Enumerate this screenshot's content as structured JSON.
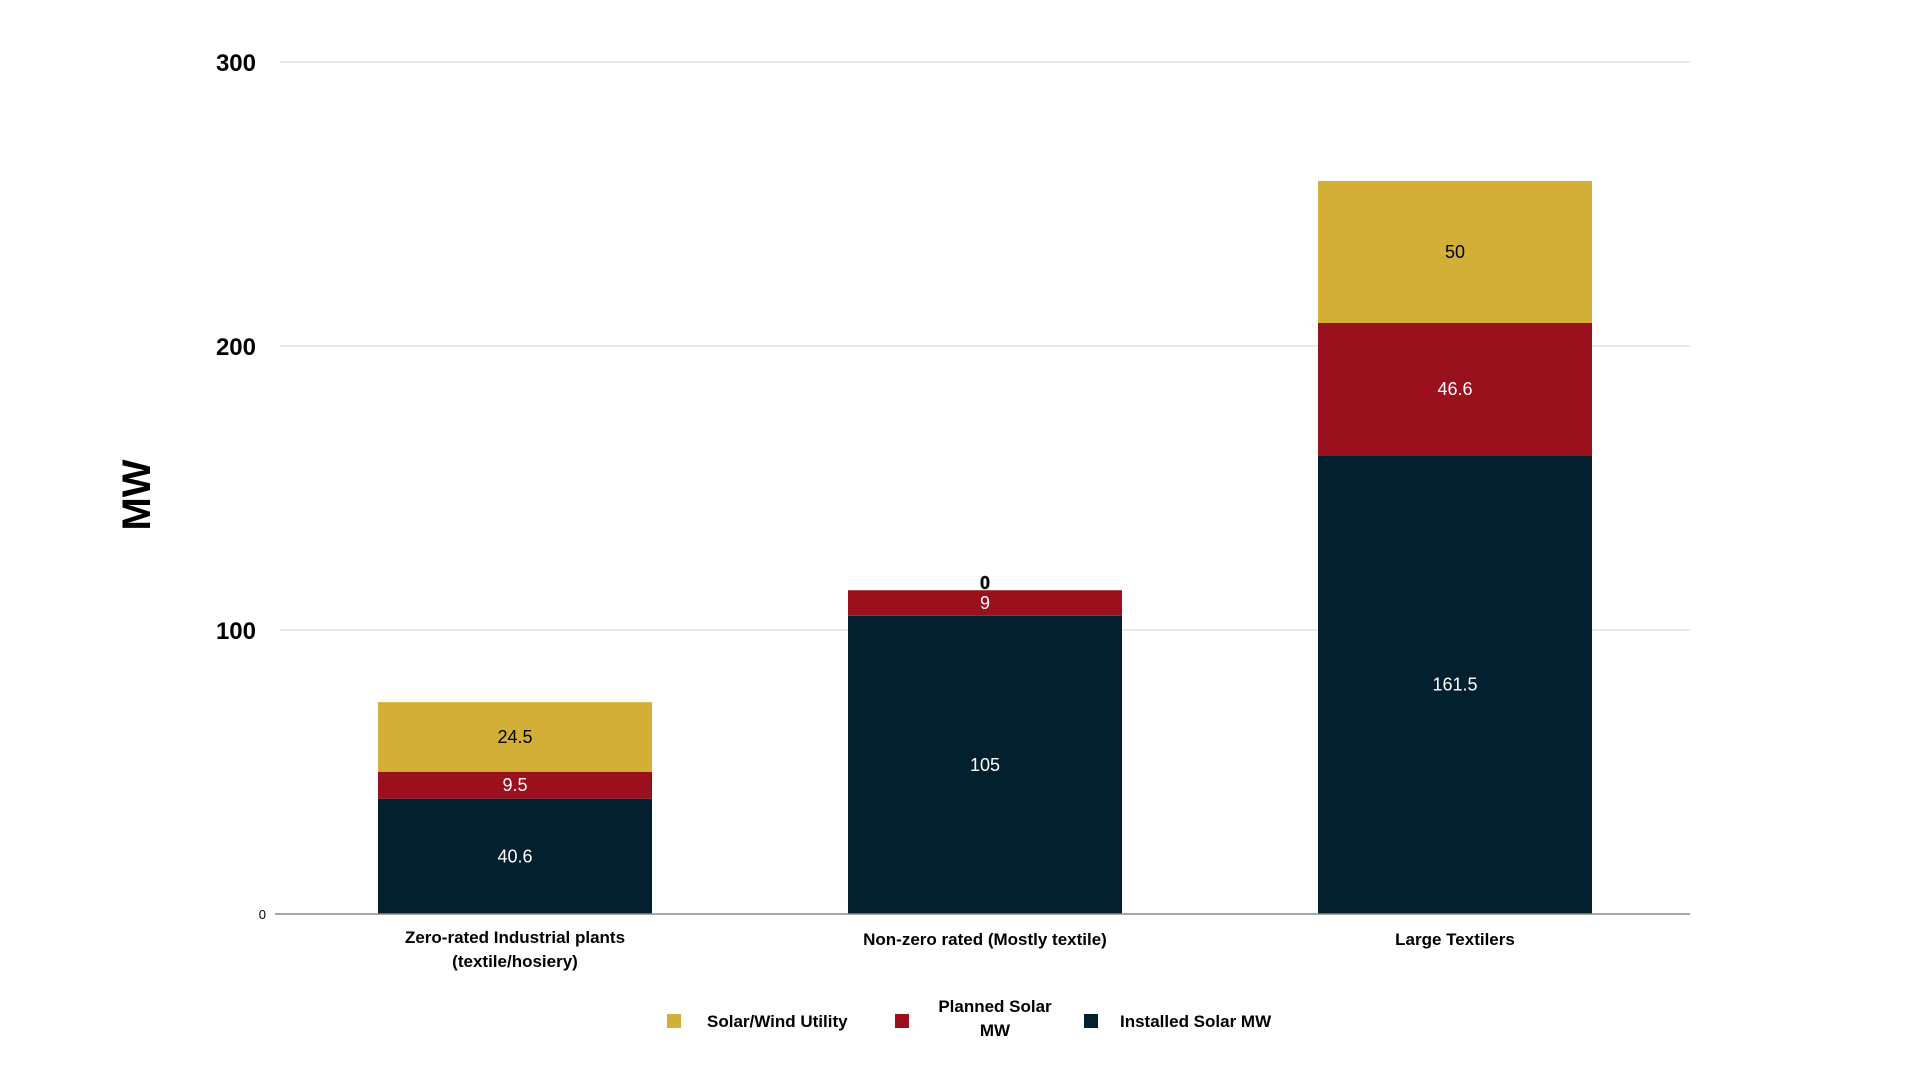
{
  "chart_data": {
    "type": "bar",
    "stacked": true,
    "title": "",
    "xlabel": "",
    "ylabel": "MW",
    "ylim": [
      0,
      300
    ],
    "yticks": [
      0,
      100,
      200,
      300
    ],
    "categories": [
      [
        "Zero-rated Industrial plants",
        "(textile/hosiery)"
      ],
      [
        "Non-zero rated (Mostly textile)"
      ],
      [
        "Large Textilers"
      ]
    ],
    "series": [
      {
        "name": "Installed Solar MW",
        "legend_lines": [
          "Installed Solar MW"
        ],
        "color": "#03202e",
        "label_color": "#ffffff",
        "values": [
          40.6,
          105,
          161.5
        ]
      },
      {
        "name": "Planned Solar MW",
        "legend_lines": [
          "Planned Solar",
          "MW"
        ],
        "color": "#9b101d",
        "label_color": "#ffffff",
        "values": [
          9.5,
          9,
          46.6
        ]
      },
      {
        "name": "Solar/Wind Utility",
        "legend_lines": [
          "Solar/Wind Utility"
        ],
        "color": "#d4af37",
        "label_color": "#000000",
        "values": [
          24.5,
          0,
          50
        ]
      }
    ],
    "legend_order": [
      "Solar/Wind Utility",
      "Planned Solar MW",
      "Installed Solar MW"
    ],
    "legend_position": "bottom-center",
    "grid": true
  }
}
